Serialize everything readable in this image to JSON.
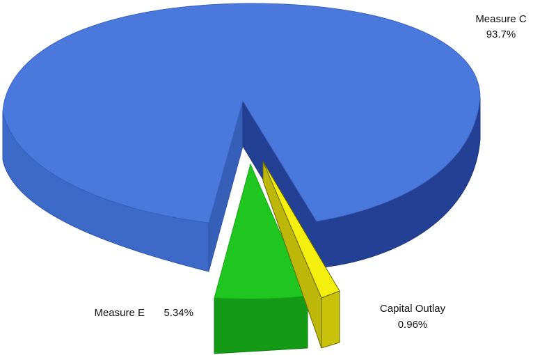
{
  "chart_data": {
    "type": "pie",
    "style": "3d-exploded",
    "title": "",
    "slices": [
      {
        "name": "Measure C",
        "value": 93.7,
        "value_label": "93.7%",
        "color": "#4a78dc"
      },
      {
        "name": "Measure E",
        "value": 5.34,
        "value_label": "5.34%",
        "color": "#1fc61f"
      },
      {
        "name": "Capital Outlay",
        "value": 0.96,
        "value_label": "0.96%",
        "color": "#f5ef10"
      }
    ],
    "legend": "none"
  }
}
